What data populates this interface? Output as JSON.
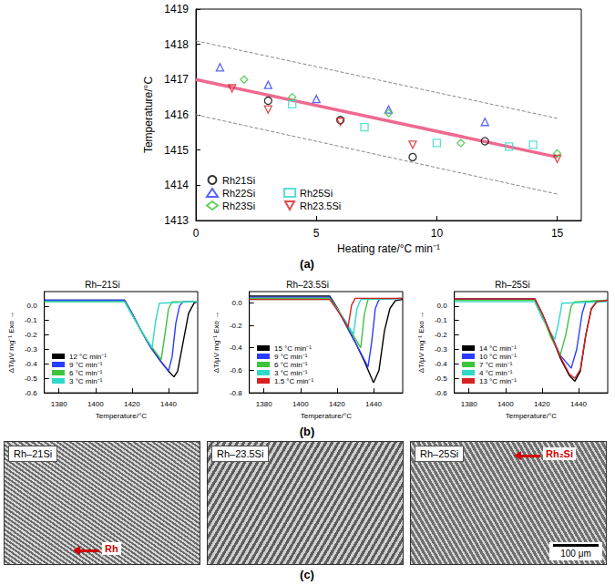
{
  "chart_data": [
    {
      "type": "scatter",
      "x_label": "Heating rate/°C min⁻¹",
      "y_label": "Temperature/°C",
      "xlim": [
        0,
        16
      ],
      "xticks": [
        0,
        5,
        10,
        15
      ],
      "ylim": [
        1413,
        1419
      ],
      "yticks": [
        1413,
        1414,
        1415,
        1416,
        1417,
        1418,
        1419
      ],
      "grid": false,
      "legend": "lower left",
      "series": [
        {
          "name": "Rh21Si",
          "color": "#000000",
          "marker": "circle",
          "x": [
            3,
            6,
            9,
            12
          ],
          "values": [
            1416.4,
            1415.85,
            1414.8,
            1415.25
          ]
        },
        {
          "name": "Rh22Si",
          "color": "#2a3cff",
          "marker": "triangle",
          "x": [
            1,
            3,
            5,
            8,
            12
          ],
          "values": [
            1417.35,
            1416.85,
            1416.45,
            1416.15,
            1415.8
          ]
        },
        {
          "name": "Rh23Si",
          "color": "#3cc43c",
          "marker": "diamond",
          "x": [
            2,
            4,
            8,
            11,
            15
          ],
          "values": [
            1417.0,
            1416.5,
            1416.05,
            1415.2,
            1414.9
          ]
        },
        {
          "name": "Rh25Si",
          "color": "#30d8c8",
          "marker": "square",
          "x": [
            4,
            7,
            10,
            13,
            14
          ],
          "values": [
            1416.3,
            1415.65,
            1415.2,
            1415.1,
            1415.15
          ]
        },
        {
          "name": "Rh23.5Si",
          "color": "#d62020",
          "marker": "triangle_down",
          "x": [
            1.5,
            3,
            6,
            9,
            15
          ],
          "values": [
            1416.75,
            1416.15,
            1415.8,
            1415.15,
            1414.75
          ]
        }
      ],
      "fit_lines": [
        {
          "color": "#ee6a90",
          "line_style": "solid",
          "x": [
            0,
            15
          ],
          "values": [
            1417.0,
            1414.8
          ]
        },
        {
          "color": "#888888",
          "line_style": "dashed",
          "x": [
            0,
            15
          ],
          "values": [
            1418.1,
            1415.9
          ]
        },
        {
          "color": "#888888",
          "line_style": "dashed",
          "x": [
            0,
            15
          ],
          "values": [
            1416.0,
            1413.75
          ]
        }
      ]
    },
    {
      "type": "line",
      "title": "Rh–21Si",
      "x_label": "Temperature/°C",
      "y_label": "ΔT/μV mg⁻¹ Exo →",
      "xlim": [
        1372,
        1456
      ],
      "xticks": [
        1380,
        1400,
        1420,
        1440
      ],
      "ylim": [
        -0.6,
        0.1
      ],
      "yticks": [
        {
          "value": 0,
          "label": "0.0"
        },
        -0.1,
        -0.2,
        -0.3,
        -0.4,
        -0.5,
        -0.6
      ],
      "grid": false,
      "legend": "lower left",
      "series": [
        {
          "name": "12 °C min⁻¹",
          "color": "#000000",
          "x": [
            1372,
            1416,
            1420,
            1425,
            1430,
            1435,
            1440,
            1443,
            1445,
            1448,
            1451,
            1454,
            1456
          ],
          "values": [
            0.04,
            0.04,
            -0.05,
            -0.17,
            -0.28,
            -0.37,
            -0.45,
            -0.49,
            -0.45,
            -0.25,
            -0.05,
            0.02,
            0.03
          ]
        },
        {
          "name": "9 °C min⁻¹",
          "color": "#2a3cff",
          "x": [
            1372,
            1416,
            1420,
            1425,
            1430,
            1435,
            1440,
            1442,
            1444,
            1446,
            1448,
            1456
          ],
          "values": [
            0.04,
            0.04,
            -0.05,
            -0.17,
            -0.28,
            -0.37,
            -0.45,
            -0.35,
            -0.12,
            0.0,
            0.03,
            0.03
          ]
        },
        {
          "name": "6 °C min⁻¹",
          "color": "#3cc43c",
          "x": [
            1372,
            1416,
            1420,
            1425,
            1430,
            1436,
            1438,
            1440,
            1442,
            1456
          ],
          "values": [
            0.03,
            0.03,
            -0.06,
            -0.17,
            -0.27,
            -0.37,
            -0.2,
            -0.02,
            0.03,
            0.03
          ]
        },
        {
          "name": "3 °C min⁻¹",
          "color": "#30d8c8",
          "x": [
            1372,
            1416,
            1420,
            1425,
            1431,
            1433,
            1435,
            1456
          ],
          "values": [
            0.03,
            0.03,
            -0.06,
            -0.17,
            -0.29,
            -0.1,
            0.02,
            0.03
          ]
        }
      ]
    },
    {
      "type": "line",
      "title": "Rh–23.5Si",
      "x_label": "Temperature/°C",
      "y_label": "ΔT/μV mg⁻¹ Exo →",
      "xlim": [
        1372,
        1456
      ],
      "xticks": [
        1380,
        1400,
        1420,
        1440
      ],
      "ylim": [
        -0.8,
        0.1
      ],
      "yticks": [
        {
          "value": 0,
          "label": "0.0"
        },
        -0.2,
        -0.4,
        -0.6,
        -0.8
      ],
      "grid": false,
      "legend": "lower left",
      "series": [
        {
          "name": "15 °C min⁻¹",
          "color": "#000000",
          "x": [
            1372,
            1416,
            1420,
            1425,
            1430,
            1435,
            1440,
            1443,
            1446,
            1449,
            1452,
            1456
          ],
          "values": [
            0.06,
            0.06,
            -0.04,
            -0.2,
            -0.35,
            -0.52,
            -0.71,
            -0.6,
            -0.25,
            -0.05,
            0.02,
            0.03
          ]
        },
        {
          "name": "9 °C min⁻¹",
          "color": "#2a3cff",
          "x": [
            1372,
            1416,
            1420,
            1425,
            1430,
            1437,
            1439,
            1441,
            1443,
            1456
          ],
          "values": [
            0.05,
            0.05,
            -0.05,
            -0.2,
            -0.35,
            -0.57,
            -0.35,
            -0.05,
            0.03,
            0.04
          ]
        },
        {
          "name": "6 °C min⁻¹",
          "color": "#3cc43c",
          "x": [
            1372,
            1416,
            1420,
            1425,
            1433,
            1435,
            1437,
            1456
          ],
          "values": [
            0.04,
            0.04,
            -0.05,
            -0.18,
            -0.4,
            -0.1,
            0.03,
            0.04
          ]
        },
        {
          "name": "3 °C min⁻¹",
          "color": "#30d8c8",
          "x": [
            1372,
            1416,
            1420,
            1425,
            1429,
            1431,
            1433,
            1456
          ],
          "values": [
            0.03,
            0.03,
            -0.05,
            -0.17,
            -0.28,
            -0.05,
            0.03,
            0.04
          ]
        },
        {
          "name": "1.5 °C min⁻¹",
          "color": "#d62020",
          "x": [
            1372,
            1416,
            1420,
            1424,
            1426,
            1428,
            1430,
            1456
          ],
          "values": [
            0.03,
            0.03,
            -0.06,
            -0.16,
            -0.22,
            -0.02,
            0.04,
            0.04
          ]
        }
      ]
    },
    {
      "type": "line",
      "title": "Rh–25Si",
      "x_label": "Temperature/°C",
      "y_label": "ΔT/μV mg⁻¹ Exo →",
      "xlim": [
        1372,
        1456
      ],
      "xticks": [
        1380,
        1400,
        1420,
        1440
      ],
      "ylim": [
        -0.6,
        0.1
      ],
      "yticks": [
        {
          "value": 0,
          "label": "0.0"
        },
        -0.1,
        -0.2,
        -0.3,
        -0.4,
        -0.5,
        -0.6
      ],
      "grid": false,
      "legend": "lower left",
      "series": [
        {
          "name": "14 °C min⁻¹",
          "color": "#000000",
          "x": [
            1372,
            1416,
            1420,
            1425,
            1430,
            1435,
            1438,
            1441,
            1444,
            1447,
            1450,
            1456
          ],
          "values": [
            0.05,
            0.05,
            -0.05,
            -0.2,
            -0.36,
            -0.48,
            -0.52,
            -0.45,
            -0.2,
            -0.02,
            0.03,
            0.04
          ]
        },
        {
          "name": "10 °C min⁻¹",
          "color": "#2a3cff",
          "x": [
            1372,
            1416,
            1420,
            1425,
            1430,
            1436,
            1439,
            1442,
            1444,
            1456
          ],
          "values": [
            0.05,
            0.05,
            -0.05,
            -0.2,
            -0.34,
            -0.43,
            -0.3,
            -0.05,
            0.03,
            0.04
          ]
        },
        {
          "name": "7 °C min⁻¹",
          "color": "#3cc43c",
          "x": [
            1372,
            1416,
            1420,
            1425,
            1430,
            1433,
            1436,
            1438,
            1456
          ],
          "values": [
            0.04,
            0.04,
            -0.06,
            -0.22,
            -0.34,
            -0.2,
            0.0,
            0.03,
            0.04
          ]
        },
        {
          "name": "4 °C min⁻¹",
          "color": "#30d8c8",
          "x": [
            1372,
            1416,
            1420,
            1427,
            1429,
            1431,
            1456
          ],
          "values": [
            0.03,
            0.03,
            -0.08,
            -0.23,
            -0.12,
            0.02,
            0.03
          ]
        },
        {
          "name": "13 °C min⁻¹",
          "color": "#d62020",
          "x": [
            1372,
            1416,
            1420,
            1425,
            1430,
            1435,
            1438,
            1441,
            1444,
            1447,
            1450,
            1456
          ],
          "values": [
            0.05,
            0.05,
            -0.05,
            -0.2,
            -0.35,
            -0.47,
            -0.5,
            -0.44,
            -0.2,
            -0.02,
            0.03,
            0.04
          ]
        }
      ]
    }
  ],
  "panel_labels": [
    "(a)",
    "(b)",
    "(c)"
  ],
  "micrographs": [
    {
      "label": "Rh–21Si",
      "phase": "Rh"
    },
    {
      "label": "Rh–23.5Si"
    },
    {
      "label": "Rh–25Si",
      "phase": "Rh₂Si"
    }
  ],
  "scale_bar": "100 μm"
}
